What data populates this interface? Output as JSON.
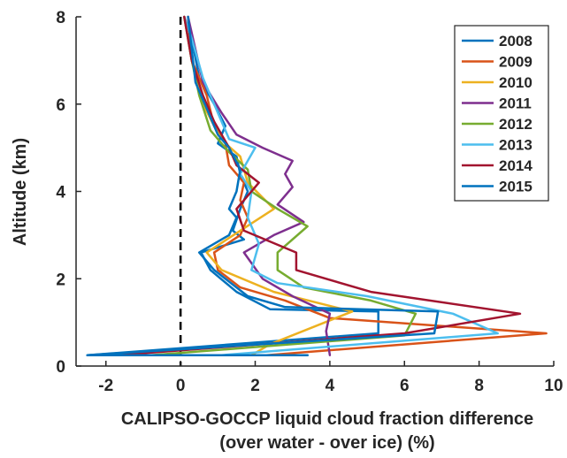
{
  "chart_data": {
    "type": "line",
    "xlabel_line1": "CALIPSO-GOCCP liquid cloud fraction difference",
    "xlabel_line2": "(over water - over ice) (%)",
    "ylabel": "Altitude (km)",
    "xlim": [
      -2.8,
      10
    ],
    "ylim": [
      0,
      8
    ],
    "xticks": [
      -2,
      0,
      2,
      4,
      6,
      8,
      10
    ],
    "xtick_labels": [
      "-2",
      "0",
      "2",
      "4",
      "6",
      "8",
      "10"
    ],
    "yticks": [
      0,
      2,
      4,
      6,
      8
    ],
    "ytick_labels": [
      "0",
      "2",
      "4",
      "6",
      "8"
    ],
    "grid": false,
    "legend_position": "top-right",
    "reference_line": {
      "x": 0,
      "style": "dashed"
    },
    "series": [
      {
        "name": "2008",
        "color": "#0072BD",
        "points": [
          [
            3.4,
            0.25
          ],
          [
            -2.5,
            0.25
          ],
          [
            5.3,
            0.75
          ],
          [
            5.3,
            1.25
          ],
          [
            2.4,
            1.3
          ],
          [
            1.5,
            1.7
          ],
          [
            0.8,
            2.2
          ],
          [
            0.55,
            2.6
          ],
          [
            1.7,
            2.9
          ],
          [
            1.4,
            3.1
          ],
          [
            1.6,
            3.6
          ],
          [
            1.8,
            4.0
          ],
          [
            1.6,
            4.4
          ],
          [
            1.5,
            4.8
          ],
          [
            1.0,
            5.1
          ],
          [
            1.2,
            5.5
          ],
          [
            0.9,
            6.0
          ],
          [
            0.5,
            6.6
          ],
          [
            0.3,
            7.5
          ],
          [
            0.1,
            8.0
          ]
        ]
      },
      {
        "name": "2009",
        "color": "#D95319",
        "points": [
          [
            2.3,
            0.25
          ],
          [
            9.8,
            0.75
          ],
          [
            4.0,
            1.1
          ],
          [
            2.8,
            1.5
          ],
          [
            1.6,
            1.8
          ],
          [
            1.0,
            2.2
          ],
          [
            0.9,
            2.6
          ],
          [
            1.6,
            3.0
          ],
          [
            1.8,
            3.4
          ],
          [
            1.6,
            3.8
          ],
          [
            1.7,
            4.2
          ],
          [
            1.3,
            4.6
          ],
          [
            1.2,
            5.1
          ],
          [
            0.9,
            5.5
          ],
          [
            0.7,
            6.2
          ],
          [
            0.3,
            7.0
          ],
          [
            0.2,
            8.0
          ]
        ]
      },
      {
        "name": "2010",
        "color": "#EDB120",
        "points": [
          [
            1.9,
            0.25
          ],
          [
            2.4,
            0.5
          ],
          [
            4.6,
            1.25
          ],
          [
            2.5,
            1.7
          ],
          [
            1.1,
            2.2
          ],
          [
            0.7,
            2.6
          ],
          [
            1.6,
            3.1
          ],
          [
            2.5,
            3.6
          ],
          [
            1.8,
            4.2
          ],
          [
            1.6,
            4.8
          ],
          [
            1.2,
            5.1
          ],
          [
            0.9,
            5.5
          ],
          [
            0.6,
            6.0
          ],
          [
            0.3,
            7.0
          ],
          [
            0.1,
            8.0
          ]
        ]
      },
      {
        "name": "2011",
        "color": "#7E2F8E",
        "points": [
          [
            4.0,
            0.25
          ],
          [
            3.9,
            0.8
          ],
          [
            4.0,
            1.2
          ],
          [
            3.0,
            1.6
          ],
          [
            2.2,
            2.0
          ],
          [
            1.7,
            2.6
          ],
          [
            2.5,
            3.0
          ],
          [
            3.3,
            3.3
          ],
          [
            2.6,
            3.7
          ],
          [
            3.0,
            4.1
          ],
          [
            2.8,
            4.4
          ],
          [
            3.0,
            4.7
          ],
          [
            2.2,
            5.0
          ],
          [
            1.5,
            5.3
          ],
          [
            1.1,
            5.8
          ],
          [
            0.6,
            6.5
          ],
          [
            0.2,
            8.0
          ]
        ]
      },
      {
        "name": "2012",
        "color": "#77AC30",
        "points": [
          [
            -0.8,
            0.25
          ],
          [
            6.0,
            0.7
          ],
          [
            6.3,
            1.2
          ],
          [
            5.1,
            1.5
          ],
          [
            3.3,
            1.8
          ],
          [
            2.6,
            2.2
          ],
          [
            2.6,
            2.6
          ],
          [
            3.4,
            3.2
          ],
          [
            2.6,
            3.6
          ],
          [
            1.9,
            4.0
          ],
          [
            1.8,
            4.5
          ],
          [
            1.3,
            4.9
          ],
          [
            0.8,
            5.4
          ],
          [
            0.5,
            6.2
          ],
          [
            0.3,
            7.0
          ],
          [
            0.1,
            8.0
          ]
        ]
      },
      {
        "name": "2013",
        "color": "#4DBEEE",
        "points": [
          [
            1.1,
            0.25
          ],
          [
            8.5,
            0.75
          ],
          [
            7.3,
            1.2
          ],
          [
            5.0,
            1.6
          ],
          [
            2.6,
            1.9
          ],
          [
            1.9,
            2.2
          ],
          [
            2.1,
            2.8
          ],
          [
            1.8,
            3.4
          ],
          [
            1.9,
            4.0
          ],
          [
            1.6,
            4.4
          ],
          [
            2.0,
            5.0
          ],
          [
            1.3,
            5.2
          ],
          [
            1.0,
            5.8
          ],
          [
            0.6,
            6.6
          ],
          [
            0.3,
            7.5
          ],
          [
            0.1,
            8.0
          ]
        ]
      },
      {
        "name": "2014",
        "color": "#A2142F",
        "points": [
          [
            -1.7,
            0.25
          ],
          [
            6.0,
            0.75
          ],
          [
            9.1,
            1.2
          ],
          [
            5.1,
            1.7
          ],
          [
            3.1,
            2.2
          ],
          [
            3.1,
            2.6
          ],
          [
            1.7,
            3.1
          ],
          [
            1.5,
            3.6
          ],
          [
            2.1,
            4.2
          ],
          [
            1.5,
            4.6
          ],
          [
            1.3,
            5.0
          ],
          [
            0.9,
            5.6
          ],
          [
            0.6,
            6.2
          ],
          [
            0.3,
            7.0
          ],
          [
            0.1,
            8.0
          ]
        ]
      },
      {
        "name": "2015",
        "color": "#0072BD",
        "points": [
          [
            3.4,
            0.25
          ],
          [
            -2.5,
            0.25
          ],
          [
            6.8,
            0.75
          ],
          [
            6.9,
            1.25
          ],
          [
            2.8,
            1.35
          ],
          [
            1.8,
            1.6
          ],
          [
            0.9,
            2.2
          ],
          [
            0.5,
            2.6
          ],
          [
            1.3,
            3.0
          ],
          [
            1.5,
            3.4
          ],
          [
            1.3,
            3.6
          ],
          [
            1.5,
            4.0
          ],
          [
            1.6,
            4.5
          ],
          [
            1.3,
            5.0
          ],
          [
            1.0,
            5.3
          ],
          [
            0.8,
            5.7
          ],
          [
            0.4,
            6.5
          ],
          [
            0.2,
            8.0
          ]
        ]
      }
    ]
  }
}
